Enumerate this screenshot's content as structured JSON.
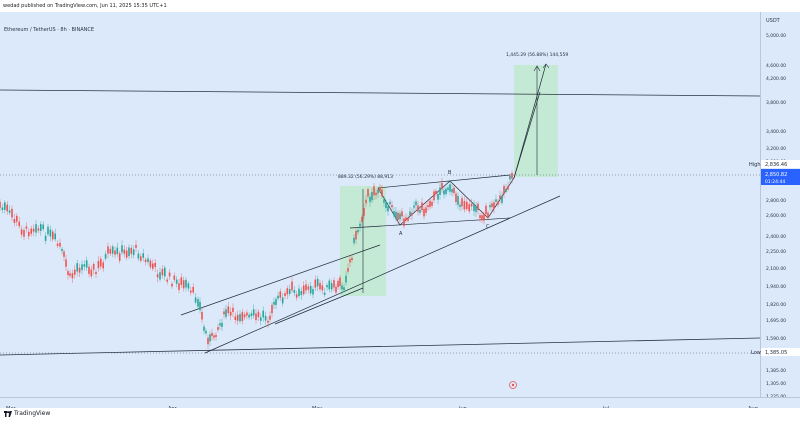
{
  "header": {
    "published_text": "wedad published on TradingView.com, Jun 11, 2025 15:35 UTC+1"
  },
  "chart": {
    "symbol_title": "Ethereum / TetherUS · 8h · BINANCE",
    "currency": "USDT"
  },
  "price_scale": {
    "ticks": [
      "5,000.00",
      "4,600.00",
      "4,200.00",
      "3,800.00",
      "3,400.00",
      "3,200.00",
      "3,000.00",
      "2,800.00",
      "2,600.00",
      "2,400.00",
      "2,250.00",
      "2,100.00",
      "1,940.00",
      "1,820.00",
      "1,695.00",
      "1,590.00",
      "1,495.00",
      "1,385.00",
      "1,305.00",
      "1,225.00",
      "1,170.00"
    ],
    "high_label": "High",
    "high_value": "2,836.46",
    "current_price": "2,850.82",
    "countdown": "01:24:44",
    "low_label": "Low",
    "low_value": "1,385.05"
  },
  "time_axis": {
    "labels": [
      "Mar",
      "Apr",
      "May",
      "Jun",
      "Jul",
      "Aug"
    ]
  },
  "annotations": {
    "lower_box_label": "889.32 (56.29%) 88,913",
    "upper_box_label": "1,445.29 (56.88%) 144,559",
    "point_a": "A",
    "point_b": "B",
    "point_c": "C"
  },
  "footer": {
    "brand": "TradingView"
  },
  "colors": {
    "background": "#dbe9fb",
    "candle_up": "#26a69a",
    "candle_down": "#ef5350",
    "target_box": "#bfeacf",
    "price_badge": "#2962ff"
  }
}
